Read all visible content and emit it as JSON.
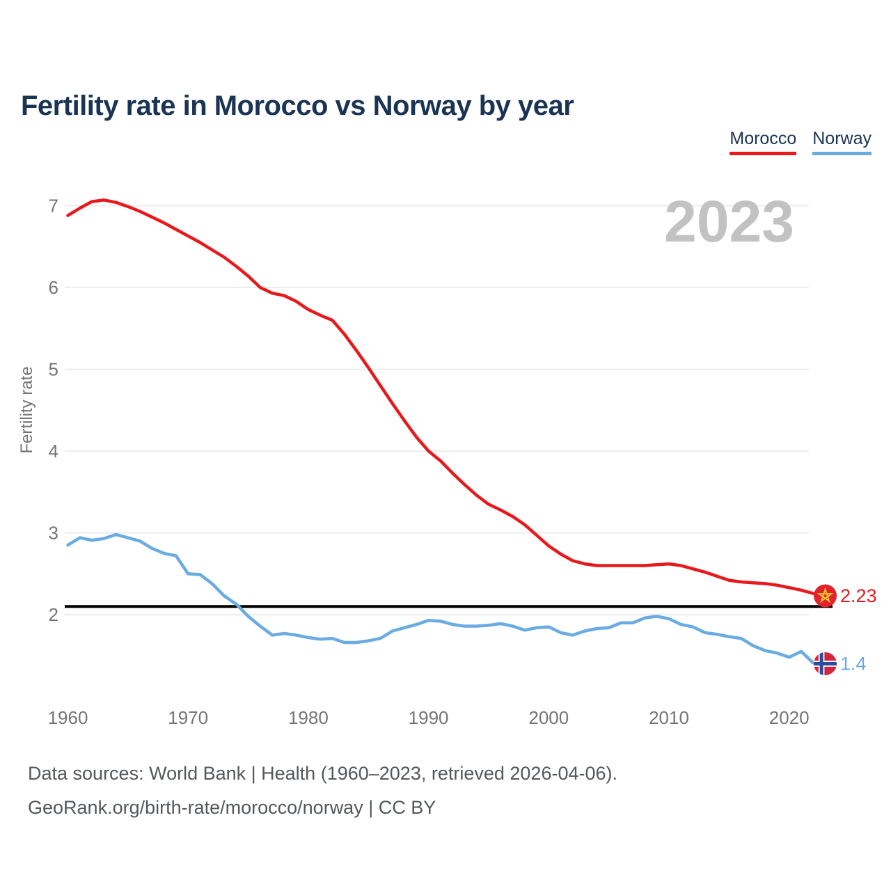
{
  "title": "Fertility rate in Morocco vs Norway by year",
  "watermark_year": "2023",
  "legend": [
    {
      "label": "Morocco",
      "color": "#e8191c"
    },
    {
      "label": "Norway",
      "color": "#6aabe2"
    }
  ],
  "icons": {
    "morocco": "morocco-flag-icon",
    "norway": "norway-flag-icon"
  },
  "colors": {
    "title": "#1a3453",
    "axis_text": "#757575",
    "gridline": "#ececec",
    "watermark": "#c2c2c2",
    "footer_text": "#54575b",
    "reference_line": "#000000",
    "morocco_line": "#e8191c",
    "norway_line": "#6aabe2",
    "morocco_flag_red": "#e3232c",
    "morocco_flag_star": "#f2c431",
    "norway_flag_red": "#d5253c",
    "norway_flag_blue": "#2b4c9b",
    "norway_flag_white": "#ffffff"
  },
  "footer": {
    "line1": "Data sources: World Bank | Health (1960–2023, retrieved 2026-04-06).",
    "line2": "GeoRank.org/birth-rate/morocco/norway | CC BY"
  },
  "chart_data": {
    "type": "line",
    "title": "Fertility rate in Morocco vs Norway by year",
    "xlabel": "",
    "ylabel": "Fertility rate",
    "xlim": [
      1960,
      2023
    ],
    "ylim": [
      1.3,
      7.3
    ],
    "xticks": [
      1960,
      1970,
      1980,
      1990,
      2000,
      2010,
      2020
    ],
    "yticks": [
      2,
      3,
      4,
      5,
      6,
      7
    ],
    "grid": "horizontal",
    "legend_position": "top-right",
    "watermark": "2023",
    "reference_line": {
      "value": 2.1
    },
    "x": [
      1960,
      1961,
      1962,
      1963,
      1964,
      1965,
      1966,
      1967,
      1968,
      1969,
      1970,
      1971,
      1972,
      1973,
      1974,
      1975,
      1976,
      1977,
      1978,
      1979,
      1980,
      1981,
      1982,
      1983,
      1984,
      1985,
      1986,
      1987,
      1988,
      1989,
      1990,
      1991,
      1992,
      1993,
      1994,
      1995,
      1996,
      1997,
      1998,
      1999,
      2000,
      2001,
      2002,
      2003,
      2004,
      2005,
      2006,
      2007,
      2008,
      2009,
      2010,
      2011,
      2012,
      2013,
      2014,
      2015,
      2016,
      2017,
      2018,
      2019,
      2020,
      2021,
      2022,
      2023
    ],
    "series": [
      {
        "name": "Morocco",
        "end_label": "2.23",
        "last_value": 2.23,
        "values": [
          6.88,
          6.97,
          7.05,
          7.07,
          7.04,
          6.99,
          6.93,
          6.86,
          6.79,
          6.71,
          6.63,
          6.55,
          6.46,
          6.37,
          6.26,
          6.14,
          6.0,
          5.93,
          5.9,
          5.83,
          5.73,
          5.66,
          5.6,
          5.43,
          5.23,
          5.02,
          4.8,
          4.58,
          4.37,
          4.17,
          4.0,
          3.88,
          3.73,
          3.59,
          3.46,
          3.35,
          3.28,
          3.2,
          3.1,
          2.97,
          2.84,
          2.74,
          2.66,
          2.62,
          2.6,
          2.6,
          2.6,
          2.6,
          2.6,
          2.61,
          2.62,
          2.6,
          2.56,
          2.52,
          2.47,
          2.42,
          2.4,
          2.39,
          2.38,
          2.36,
          2.33,
          2.3,
          2.26,
          2.23
        ]
      },
      {
        "name": "Norway",
        "end_label": "1.4",
        "last_value": 1.4,
        "values": [
          2.85,
          2.94,
          2.91,
          2.93,
          2.98,
          2.94,
          2.9,
          2.81,
          2.75,
          2.72,
          2.5,
          2.49,
          2.38,
          2.23,
          2.13,
          1.98,
          1.86,
          1.75,
          1.77,
          1.75,
          1.72,
          1.7,
          1.71,
          1.66,
          1.66,
          1.68,
          1.71,
          1.8,
          1.84,
          1.88,
          1.93,
          1.92,
          1.88,
          1.86,
          1.86,
          1.87,
          1.89,
          1.86,
          1.81,
          1.84,
          1.85,
          1.78,
          1.75,
          1.8,
          1.83,
          1.84,
          1.9,
          1.9,
          1.96,
          1.98,
          1.95,
          1.88,
          1.85,
          1.78,
          1.76,
          1.73,
          1.71,
          1.62,
          1.56,
          1.53,
          1.48,
          1.55,
          1.41,
          1.4
        ]
      }
    ]
  }
}
